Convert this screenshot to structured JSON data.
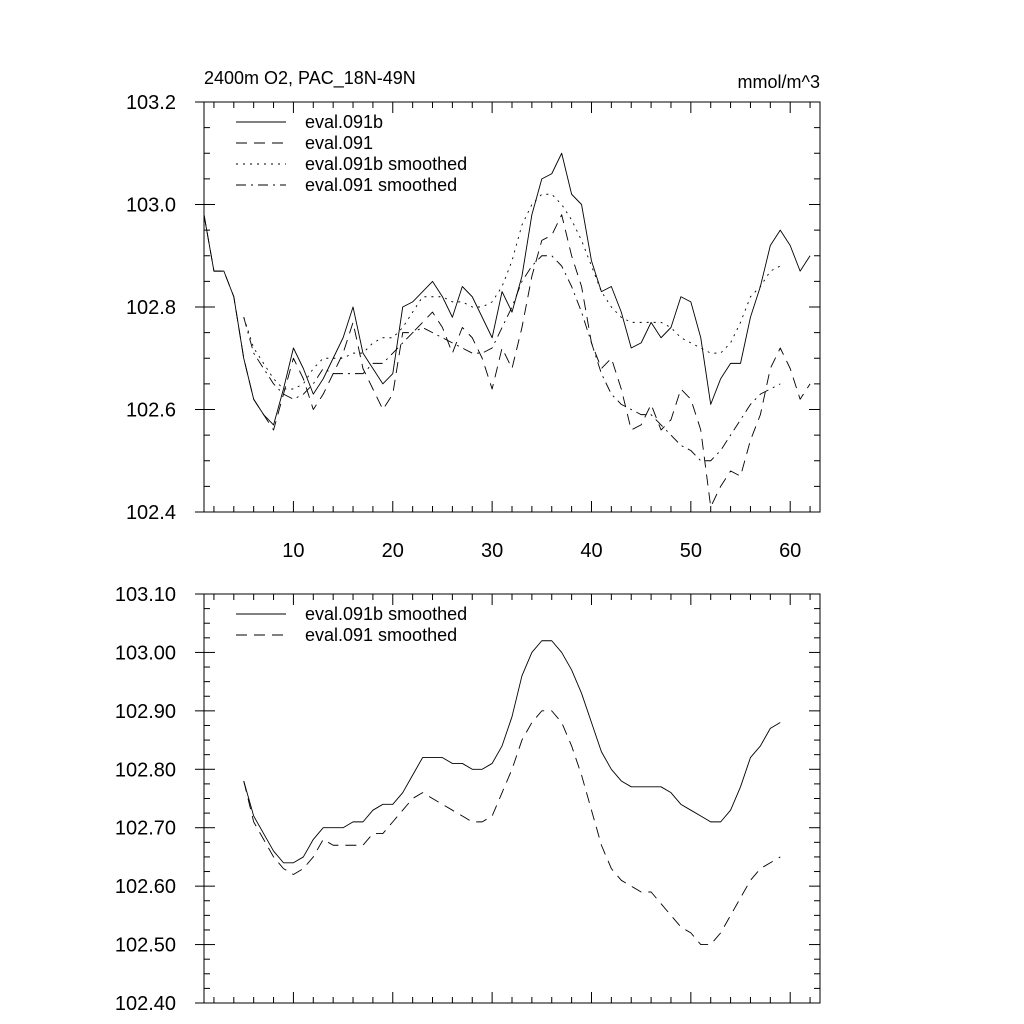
{
  "chart_data": [
    {
      "type": "line",
      "title": "2400m O2, PAC_18N-49N",
      "units": "mmol/m^3",
      "xlim": [
        1,
        63
      ],
      "ylim": [
        102.4,
        103.2
      ],
      "xticks": [
        10,
        20,
        30,
        40,
        50,
        60
      ],
      "yticks": [
        102.4,
        102.6,
        102.8,
        103.0,
        103.2
      ],
      "ytick_labels": [
        "102.4",
        "102.6",
        "102.8",
        "103.0",
        "103.2"
      ],
      "series": [
        {
          "name": "eval.091b",
          "style": "solid",
          "x": [
            1,
            2,
            3,
            4,
            5,
            6,
            7,
            8,
            9,
            10,
            11,
            12,
            13,
            14,
            15,
            16,
            17,
            18,
            19,
            20,
            21,
            22,
            23,
            24,
            25,
            26,
            27,
            28,
            29,
            30,
            31,
            32,
            33,
            34,
            35,
            36,
            37,
            38,
            39,
            40,
            41,
            42,
            43,
            44,
            45,
            46,
            47,
            48,
            49,
            50,
            51,
            52,
            53,
            54,
            55,
            56,
            57,
            58,
            59,
            60,
            61,
            62
          ],
          "values": [
            102.98,
            102.87,
            102.87,
            102.82,
            102.7,
            102.62,
            102.59,
            102.57,
            102.64,
            102.72,
            102.68,
            102.63,
            102.66,
            102.7,
            102.74,
            102.8,
            102.71,
            102.68,
            102.65,
            102.67,
            102.8,
            102.81,
            102.83,
            102.85,
            102.82,
            102.78,
            102.84,
            102.82,
            102.78,
            102.74,
            102.83,
            102.79,
            102.86,
            102.98,
            103.05,
            103.06,
            103.1,
            103.02,
            103.0,
            102.89,
            102.83,
            102.84,
            102.79,
            102.72,
            102.73,
            102.77,
            102.74,
            102.76,
            102.82,
            102.81,
            102.74,
            102.61,
            102.66,
            102.69,
            102.69,
            102.78,
            102.84,
            102.92,
            102.95,
            102.92,
            102.87,
            102.9
          ]
        },
        {
          "name": "eval.091",
          "style": "dashed",
          "x": [
            1,
            2,
            3,
            4,
            5,
            6,
            7,
            8,
            9,
            10,
            11,
            12,
            13,
            14,
            15,
            16,
            17,
            18,
            19,
            20,
            21,
            22,
            23,
            24,
            25,
            26,
            27,
            28,
            29,
            30,
            31,
            32,
            33,
            34,
            35,
            36,
            37,
            38,
            39,
            40,
            41,
            42,
            43,
            44,
            45,
            46,
            47,
            48,
            49,
            50,
            51,
            52,
            53,
            54,
            55,
            56,
            57,
            58,
            59,
            60,
            61,
            62
          ],
          "values": [
            102.98,
            102.87,
            102.87,
            102.82,
            102.7,
            102.62,
            102.59,
            102.56,
            102.63,
            102.7,
            102.66,
            102.6,
            102.63,
            102.67,
            102.71,
            102.77,
            102.68,
            102.64,
            102.6,
            102.63,
            102.75,
            102.75,
            102.77,
            102.79,
            102.76,
            102.71,
            102.76,
            102.74,
            102.7,
            102.64,
            102.72,
            102.68,
            102.76,
            102.86,
            102.93,
            102.94,
            102.98,
            102.9,
            102.84,
            102.73,
            102.68,
            102.7,
            102.64,
            102.56,
            102.57,
            102.61,
            102.56,
            102.58,
            102.64,
            102.62,
            102.56,
            102.41,
            102.45,
            102.48,
            102.47,
            102.54,
            102.59,
            102.68,
            102.72,
            102.68,
            102.62,
            102.65
          ]
        },
        {
          "name": "eval.091b smoothed",
          "style": "dotted",
          "x": [
            5,
            6,
            7,
            8,
            9,
            10,
            11,
            12,
            13,
            14,
            15,
            16,
            17,
            18,
            19,
            20,
            21,
            22,
            23,
            24,
            25,
            26,
            27,
            28,
            29,
            30,
            31,
            32,
            33,
            34,
            35,
            36,
            37,
            38,
            39,
            40,
            41,
            42,
            43,
            44,
            45,
            46,
            47,
            48,
            49,
            50,
            51,
            52,
            53,
            54,
            55,
            56,
            57,
            58,
            59
          ],
          "values": [
            102.78,
            102.72,
            102.69,
            102.66,
            102.64,
            102.64,
            102.65,
            102.68,
            102.7,
            102.7,
            102.7,
            102.71,
            102.71,
            102.73,
            102.74,
            102.74,
            102.76,
            102.79,
            102.82,
            102.82,
            102.82,
            102.81,
            102.81,
            102.8,
            102.8,
            102.81,
            102.84,
            102.89,
            102.96,
            103.0,
            103.02,
            103.02,
            103.0,
            102.97,
            102.93,
            102.88,
            102.83,
            102.8,
            102.78,
            102.77,
            102.77,
            102.77,
            102.77,
            102.76,
            102.74,
            102.73,
            102.72,
            102.71,
            102.71,
            102.73,
            102.77,
            102.82,
            102.84,
            102.87,
            102.88
          ]
        },
        {
          "name": "eval.091 smoothed",
          "style": "dashdot",
          "x": [
            5,
            6,
            7,
            8,
            9,
            10,
            11,
            12,
            13,
            14,
            15,
            16,
            17,
            18,
            19,
            20,
            21,
            22,
            23,
            24,
            25,
            26,
            27,
            28,
            29,
            30,
            31,
            32,
            33,
            34,
            35,
            36,
            37,
            38,
            39,
            40,
            41,
            42,
            43,
            44,
            45,
            46,
            47,
            48,
            49,
            50,
            51,
            52,
            53,
            54,
            55,
            56,
            57,
            58,
            59
          ],
          "values": [
            102.78,
            102.71,
            102.68,
            102.65,
            102.63,
            102.62,
            102.63,
            102.65,
            102.68,
            102.67,
            102.67,
            102.67,
            102.67,
            102.69,
            102.69,
            102.71,
            102.73,
            102.75,
            102.76,
            102.75,
            102.74,
            102.73,
            102.72,
            102.71,
            102.71,
            102.72,
            102.76,
            102.8,
            102.85,
            102.88,
            102.9,
            102.9,
            102.88,
            102.84,
            102.79,
            102.73,
            102.67,
            102.63,
            102.61,
            102.6,
            102.59,
            102.59,
            102.57,
            102.55,
            102.53,
            102.52,
            102.5,
            102.5,
            102.52,
            102.55,
            102.58,
            102.61,
            102.63,
            102.64,
            102.65
          ]
        }
      ]
    },
    {
      "type": "line",
      "xlim": [
        1,
        63
      ],
      "ylim": [
        102.4,
        103.1
      ],
      "xticks": [
        10,
        20,
        30,
        40,
        50,
        60
      ],
      "yticks": [
        102.4,
        102.5,
        102.6,
        102.7,
        102.8,
        102.9,
        103.0,
        103.1
      ],
      "ytick_labels": [
        "102.40",
        "102.50",
        "102.60",
        "102.70",
        "102.80",
        "102.90",
        "103.00",
        "103.10"
      ],
      "series": [
        {
          "name": "eval.091b smoothed",
          "style": "solid",
          "x": [
            5,
            6,
            7,
            8,
            9,
            10,
            11,
            12,
            13,
            14,
            15,
            16,
            17,
            18,
            19,
            20,
            21,
            22,
            23,
            24,
            25,
            26,
            27,
            28,
            29,
            30,
            31,
            32,
            33,
            34,
            35,
            36,
            37,
            38,
            39,
            40,
            41,
            42,
            43,
            44,
            45,
            46,
            47,
            48,
            49,
            50,
            51,
            52,
            53,
            54,
            55,
            56,
            57,
            58,
            59
          ],
          "values": [
            102.78,
            102.72,
            102.69,
            102.66,
            102.64,
            102.64,
            102.65,
            102.68,
            102.7,
            102.7,
            102.7,
            102.71,
            102.71,
            102.73,
            102.74,
            102.74,
            102.76,
            102.79,
            102.82,
            102.82,
            102.82,
            102.81,
            102.81,
            102.8,
            102.8,
            102.81,
            102.84,
            102.89,
            102.96,
            103.0,
            103.02,
            103.02,
            103.0,
            102.97,
            102.93,
            102.88,
            102.83,
            102.8,
            102.78,
            102.77,
            102.77,
            102.77,
            102.77,
            102.76,
            102.74,
            102.73,
            102.72,
            102.71,
            102.71,
            102.73,
            102.77,
            102.82,
            102.84,
            102.87,
            102.88
          ]
        },
        {
          "name": "eval.091 smoothed",
          "style": "dashed",
          "x": [
            5,
            6,
            7,
            8,
            9,
            10,
            11,
            12,
            13,
            14,
            15,
            16,
            17,
            18,
            19,
            20,
            21,
            22,
            23,
            24,
            25,
            26,
            27,
            28,
            29,
            30,
            31,
            32,
            33,
            34,
            35,
            36,
            37,
            38,
            39,
            40,
            41,
            42,
            43,
            44,
            45,
            46,
            47,
            48,
            49,
            50,
            51,
            52,
            53,
            54,
            55,
            56,
            57,
            58,
            59
          ],
          "values": [
            102.78,
            102.71,
            102.68,
            102.65,
            102.63,
            102.62,
            102.63,
            102.65,
            102.68,
            102.67,
            102.67,
            102.67,
            102.67,
            102.69,
            102.69,
            102.71,
            102.73,
            102.75,
            102.76,
            102.75,
            102.74,
            102.73,
            102.72,
            102.71,
            102.71,
            102.72,
            102.76,
            102.8,
            102.85,
            102.88,
            102.9,
            102.9,
            102.88,
            102.84,
            102.79,
            102.73,
            102.67,
            102.63,
            102.61,
            102.6,
            102.59,
            102.59,
            102.57,
            102.55,
            102.53,
            102.52,
            102.5,
            102.5,
            102.52,
            102.55,
            102.58,
            102.61,
            102.63,
            102.64,
            102.65
          ]
        }
      ]
    }
  ]
}
